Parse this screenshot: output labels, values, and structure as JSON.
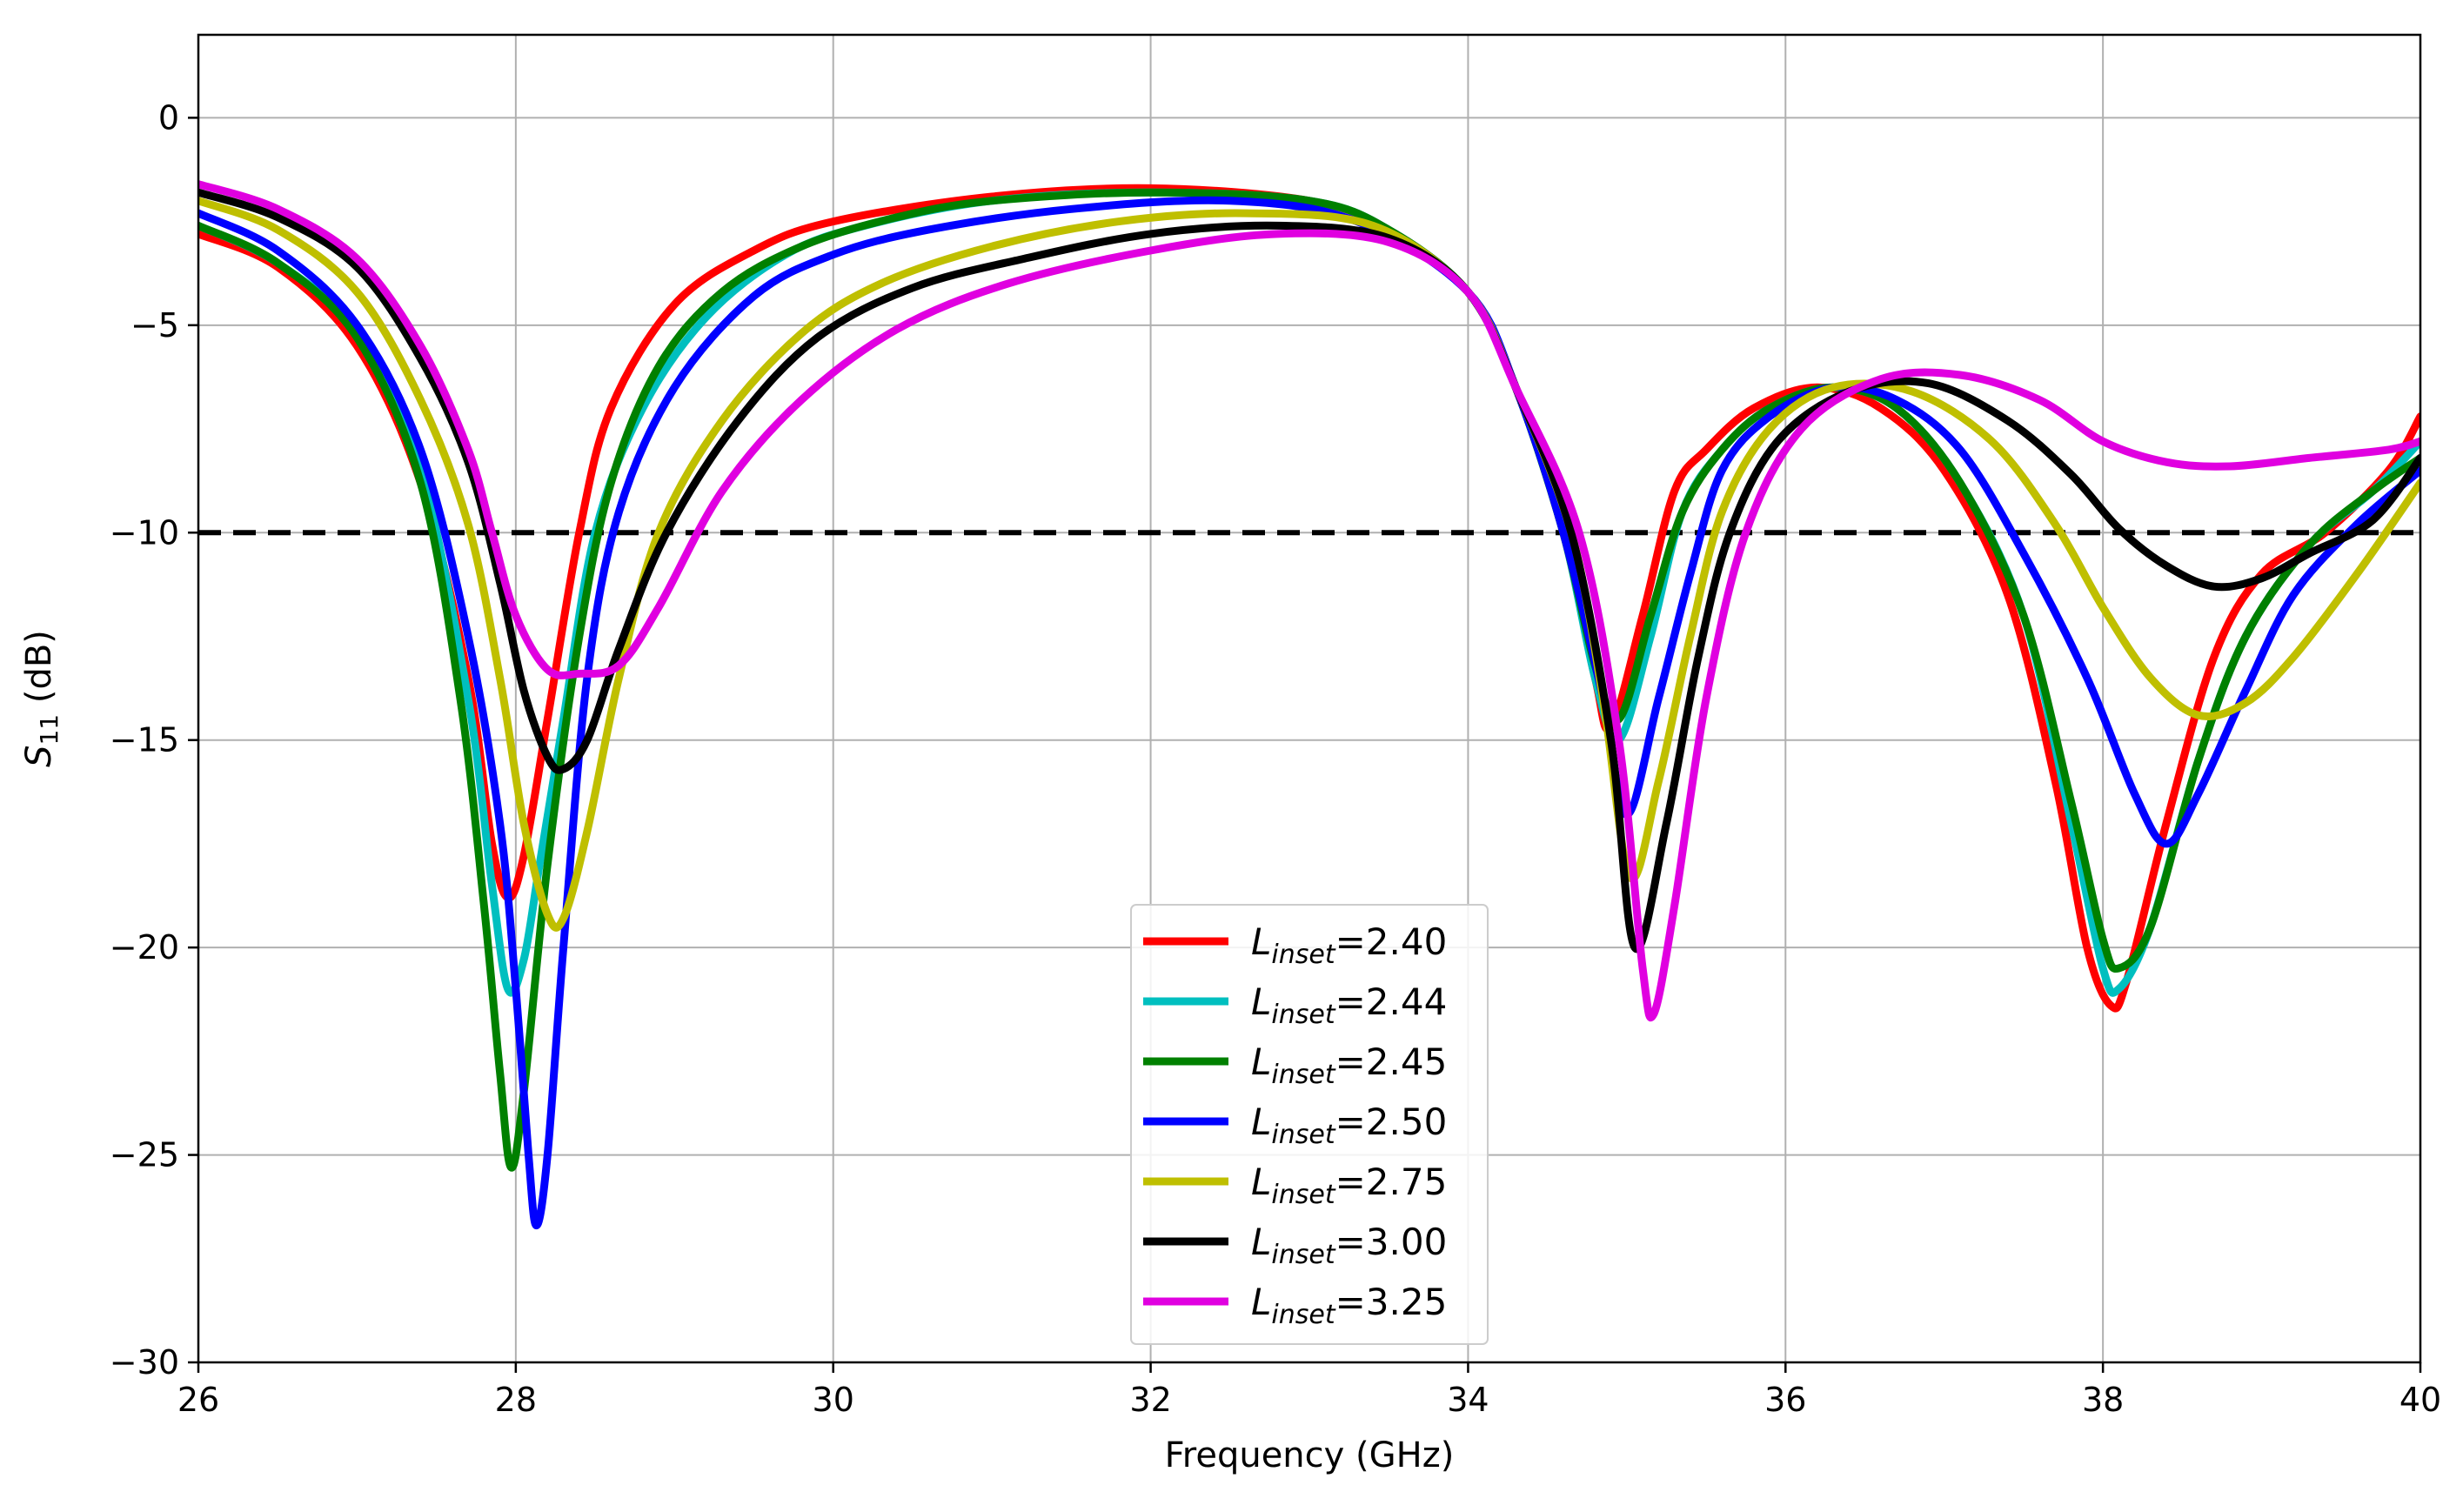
{
  "chart_data": {
    "type": "line",
    "title": "",
    "xlabel": "Frequency (GHz)",
    "ylabel": {
      "base": "S",
      "sub": "11",
      "rest": " (dB)"
    },
    "xlim": [
      26,
      40
    ],
    "ylim": [
      -30,
      2
    ],
    "x_ticks": [
      26,
      28,
      30,
      32,
      34,
      36,
      38,
      40
    ],
    "x_tick_labels": [
      "26",
      "28",
      "30",
      "32",
      "34",
      "36",
      "38",
      "40"
    ],
    "y_ticks": [
      0,
      -5,
      -10,
      -15,
      -20,
      -25,
      -30
    ],
    "y_tick_labels": [
      "0",
      "−5",
      "−10",
      "−15",
      "−20",
      "−25",
      "−30"
    ],
    "grid": true,
    "legend_position": "lower-center",
    "threshold": {
      "y": -10,
      "style": "dashed",
      "color": "#000000"
    },
    "series": [
      {
        "name": "L_inset=2.40",
        "label_base": "L",
        "label_sub": "inset",
        "label_value": "=2.40",
        "color": "#ff0000",
        "points": [
          [
            26,
            -2.8
          ],
          [
            26.5,
            -3.6
          ],
          [
            27,
            -5.5
          ],
          [
            27.4,
            -8.8
          ],
          [
            27.7,
            -13.5
          ],
          [
            27.85,
            -17.5
          ],
          [
            27.95,
            -18.8
          ],
          [
            28.05,
            -17.8
          ],
          [
            28.2,
            -14.5
          ],
          [
            28.4,
            -10
          ],
          [
            28.6,
            -7
          ],
          [
            29,
            -4.5
          ],
          [
            29.5,
            -3.2
          ],
          [
            30,
            -2.5
          ],
          [
            31,
            -1.9
          ],
          [
            32,
            -1.7
          ],
          [
            33,
            -2
          ],
          [
            33.5,
            -2.7
          ],
          [
            34,
            -4.2
          ],
          [
            34.3,
            -6.5
          ],
          [
            34.6,
            -10
          ],
          [
            34.8,
            -13.5
          ],
          [
            34.9,
            -14.7
          ],
          [
            35.1,
            -12
          ],
          [
            35.3,
            -9
          ],
          [
            35.5,
            -8
          ],
          [
            35.8,
            -7
          ],
          [
            36.2,
            -6.5
          ],
          [
            36.6,
            -7
          ],
          [
            37,
            -8.5
          ],
          [
            37.4,
            -11.5
          ],
          [
            37.7,
            -16
          ],
          [
            37.9,
            -20
          ],
          [
            38.05,
            -21.4
          ],
          [
            38.15,
            -20.8
          ],
          [
            38.4,
            -17
          ],
          [
            38.7,
            -13
          ],
          [
            39,
            -11
          ],
          [
            39.4,
            -10
          ],
          [
            39.8,
            -8.5
          ],
          [
            40,
            -7.2
          ]
        ]
      },
      {
        "name": "L_inset=2.44",
        "label_base": "L",
        "label_sub": "inset",
        "label_value": "=2.44",
        "color": "#00bfbf",
        "points": [
          [
            26,
            -2.6
          ],
          [
            26.5,
            -3.5
          ],
          [
            27,
            -5.2
          ],
          [
            27.4,
            -8.5
          ],
          [
            27.7,
            -14
          ],
          [
            27.85,
            -18.5
          ],
          [
            27.95,
            -21
          ],
          [
            28.05,
            -20.3
          ],
          [
            28.15,
            -18
          ],
          [
            28.3,
            -14.5
          ],
          [
            28.5,
            -10
          ],
          [
            28.8,
            -7
          ],
          [
            29.2,
            -4.8
          ],
          [
            29.7,
            -3.3
          ],
          [
            30.2,
            -2.6
          ],
          [
            31,
            -2
          ],
          [
            32,
            -1.8
          ],
          [
            33,
            -2
          ],
          [
            33.5,
            -2.7
          ],
          [
            34,
            -4.2
          ],
          [
            34.3,
            -6.5
          ],
          [
            34.6,
            -10
          ],
          [
            34.8,
            -13.5
          ],
          [
            34.95,
            -15
          ],
          [
            35.15,
            -12.5
          ],
          [
            35.35,
            -9.5
          ],
          [
            35.6,
            -8
          ],
          [
            35.9,
            -7
          ],
          [
            36.3,
            -6.5
          ],
          [
            36.7,
            -7
          ],
          [
            37.1,
            -8.8
          ],
          [
            37.5,
            -12
          ],
          [
            37.8,
            -17
          ],
          [
            38,
            -20.5
          ],
          [
            38.1,
            -21
          ],
          [
            38.3,
            -19.5
          ],
          [
            38.6,
            -15.5
          ],
          [
            38.9,
            -12.5
          ],
          [
            39.3,
            -10.3
          ],
          [
            39.7,
            -9
          ],
          [
            40,
            -7.8
          ]
        ]
      },
      {
        "name": "L_inset=2.45",
        "label_base": "L",
        "label_sub": "inset",
        "label_value": "=2.45",
        "color": "#008000",
        "points": [
          [
            26,
            -2.6
          ],
          [
            26.5,
            -3.5
          ],
          [
            27,
            -5.3
          ],
          [
            27.4,
            -8.8
          ],
          [
            27.65,
            -14
          ],
          [
            27.8,
            -19
          ],
          [
            27.9,
            -23
          ],
          [
            27.97,
            -25.3
          ],
          [
            28.05,
            -23.5
          ],
          [
            28.2,
            -18
          ],
          [
            28.4,
            -12.5
          ],
          [
            28.6,
            -8.8
          ],
          [
            28.9,
            -6
          ],
          [
            29.3,
            -4.2
          ],
          [
            29.8,
            -3.1
          ],
          [
            30.4,
            -2.4
          ],
          [
            31,
            -2
          ],
          [
            32,
            -1.8
          ],
          [
            33,
            -2
          ],
          [
            33.5,
            -2.7
          ],
          [
            34,
            -4.2
          ],
          [
            34.3,
            -6.5
          ],
          [
            34.6,
            -10
          ],
          [
            34.8,
            -13.2
          ],
          [
            34.95,
            -14.5
          ],
          [
            35.15,
            -12
          ],
          [
            35.35,
            -9.5
          ],
          [
            35.6,
            -8
          ],
          [
            35.9,
            -7
          ],
          [
            36.3,
            -6.5
          ],
          [
            36.7,
            -7
          ],
          [
            37.1,
            -8.8
          ],
          [
            37.5,
            -12
          ],
          [
            37.8,
            -16.5
          ],
          [
            38,
            -19.8
          ],
          [
            38.1,
            -20.5
          ],
          [
            38.3,
            -19.5
          ],
          [
            38.6,
            -15.5
          ],
          [
            38.9,
            -12.5
          ],
          [
            39.3,
            -10.3
          ],
          [
            39.7,
            -9
          ],
          [
            40,
            -8.2
          ]
        ]
      },
      {
        "name": "L_inset=2.50",
        "label_base": "L",
        "label_sub": "inset",
        "label_value": "=2.50",
        "color": "#0000ff",
        "points": [
          [
            26,
            -2.3
          ],
          [
            26.5,
            -3.2
          ],
          [
            27,
            -5
          ],
          [
            27.4,
            -8
          ],
          [
            27.7,
            -12.5
          ],
          [
            27.9,
            -17
          ],
          [
            28,
            -21
          ],
          [
            28.08,
            -25
          ],
          [
            28.13,
            -26.7
          ],
          [
            28.2,
            -25
          ],
          [
            28.3,
            -20
          ],
          [
            28.45,
            -13.5
          ],
          [
            28.65,
            -9.5
          ],
          [
            29,
            -6.5
          ],
          [
            29.5,
            -4.3
          ],
          [
            30,
            -3.3
          ],
          [
            30.6,
            -2.7
          ],
          [
            31.5,
            -2.2
          ],
          [
            32.5,
            -2
          ],
          [
            33.3,
            -2.5
          ],
          [
            34,
            -4.2
          ],
          [
            34.3,
            -6.5
          ],
          [
            34.6,
            -10
          ],
          [
            34.85,
            -14
          ],
          [
            35,
            -16.8
          ],
          [
            35.2,
            -14
          ],
          [
            35.4,
            -11
          ],
          [
            35.6,
            -8.5
          ],
          [
            35.9,
            -7.2
          ],
          [
            36.3,
            -6.5
          ],
          [
            36.7,
            -6.8
          ],
          [
            37.1,
            -8
          ],
          [
            37.5,
            -10.5
          ],
          [
            37.9,
            -13.5
          ],
          [
            38.2,
            -16.3
          ],
          [
            38.4,
            -17.5
          ],
          [
            38.6,
            -16.3
          ],
          [
            38.9,
            -13.8
          ],
          [
            39.2,
            -11.5
          ],
          [
            39.6,
            -9.8
          ],
          [
            40,
            -8.5
          ]
        ]
      },
      {
        "name": "L_inset=2.75",
        "label_base": "L",
        "label_sub": "inset",
        "label_value": "=2.75",
        "color": "#bfbf00",
        "points": [
          [
            26,
            -2
          ],
          [
            26.5,
            -2.7
          ],
          [
            27,
            -4.2
          ],
          [
            27.4,
            -6.8
          ],
          [
            27.7,
            -9.8
          ],
          [
            27.9,
            -13.5
          ],
          [
            28.05,
            -17
          ],
          [
            28.2,
            -19.2
          ],
          [
            28.3,
            -19.3
          ],
          [
            28.45,
            -17.2
          ],
          [
            28.65,
            -13.5
          ],
          [
            28.9,
            -10
          ],
          [
            29.3,
            -7.3
          ],
          [
            29.8,
            -5.2
          ],
          [
            30.3,
            -4
          ],
          [
            31,
            -3.1
          ],
          [
            31.8,
            -2.5
          ],
          [
            32.6,
            -2.3
          ],
          [
            33.4,
            -2.6
          ],
          [
            34,
            -4.2
          ],
          [
            34.3,
            -6.5
          ],
          [
            34.65,
            -10
          ],
          [
            34.85,
            -14
          ],
          [
            35.02,
            -18.3
          ],
          [
            35.2,
            -16
          ],
          [
            35.4,
            -12.5
          ],
          [
            35.6,
            -9.5
          ],
          [
            35.9,
            -7.5
          ],
          [
            36.3,
            -6.5
          ],
          [
            36.8,
            -6.6
          ],
          [
            37.3,
            -7.8
          ],
          [
            37.7,
            -9.8
          ],
          [
            38,
            -11.8
          ],
          [
            38.3,
            -13.5
          ],
          [
            38.6,
            -14.4
          ],
          [
            38.9,
            -14.1
          ],
          [
            39.2,
            -13
          ],
          [
            39.6,
            -11
          ],
          [
            40,
            -8.8
          ]
        ]
      },
      {
        "name": "L_inset=3.00",
        "label_base": "L",
        "label_sub": "inset",
        "label_value": "=3.00",
        "color": "#000000",
        "points": [
          [
            26,
            -1.8
          ],
          [
            26.5,
            -2.4
          ],
          [
            27,
            -3.6
          ],
          [
            27.4,
            -5.8
          ],
          [
            27.7,
            -8.3
          ],
          [
            27.9,
            -11.2
          ],
          [
            28.05,
            -13.8
          ],
          [
            28.2,
            -15.4
          ],
          [
            28.3,
            -15.7
          ],
          [
            28.45,
            -15
          ],
          [
            28.65,
            -12.8
          ],
          [
            28.95,
            -10
          ],
          [
            29.4,
            -7.3
          ],
          [
            29.9,
            -5.3
          ],
          [
            30.5,
            -4.1
          ],
          [
            31.2,
            -3.4
          ],
          [
            32,
            -2.8
          ],
          [
            32.8,
            -2.6
          ],
          [
            33.5,
            -2.9
          ],
          [
            34,
            -4.2
          ],
          [
            34.3,
            -6.5
          ],
          [
            34.65,
            -10
          ],
          [
            34.9,
            -15
          ],
          [
            35.05,
            -20
          ],
          [
            35.25,
            -17
          ],
          [
            35.45,
            -13
          ],
          [
            35.65,
            -10
          ],
          [
            35.95,
            -7.8
          ],
          [
            36.4,
            -6.6
          ],
          [
            36.9,
            -6.4
          ],
          [
            37.4,
            -7.3
          ],
          [
            37.8,
            -8.6
          ],
          [
            38.1,
            -9.9
          ],
          [
            38.4,
            -10.8
          ],
          [
            38.7,
            -11.3
          ],
          [
            39,
            -11.1
          ],
          [
            39.3,
            -10.5
          ],
          [
            39.7,
            -9.7
          ],
          [
            40,
            -8.2
          ]
        ]
      },
      {
        "name": "L_inset=3.25",
        "label_base": "L",
        "label_sub": "inset",
        "label_value": "=3.25",
        "color": "#e000e0",
        "points": [
          [
            26,
            -1.6
          ],
          [
            26.5,
            -2.2
          ],
          [
            27,
            -3.4
          ],
          [
            27.4,
            -5.5
          ],
          [
            27.7,
            -8
          ],
          [
            27.85,
            -10
          ],
          [
            28,
            -12
          ],
          [
            28.2,
            -13.3
          ],
          [
            28.4,
            -13.4
          ],
          [
            28.65,
            -13.2
          ],
          [
            28.9,
            -11.8
          ],
          [
            29.3,
            -9
          ],
          [
            29.8,
            -6.8
          ],
          [
            30.4,
            -5.1
          ],
          [
            31.1,
            -4
          ],
          [
            32,
            -3.2
          ],
          [
            32.8,
            -2.8
          ],
          [
            33.5,
            -3
          ],
          [
            34,
            -4.2
          ],
          [
            34.3,
            -6.5
          ],
          [
            34.7,
            -10
          ],
          [
            34.95,
            -15
          ],
          [
            35.1,
            -20.5
          ],
          [
            35.17,
            -21.6
          ],
          [
            35.3,
            -19
          ],
          [
            35.5,
            -14
          ],
          [
            35.75,
            -10
          ],
          [
            36.1,
            -7.5
          ],
          [
            36.6,
            -6.3
          ],
          [
            37.1,
            -6.2
          ],
          [
            37.6,
            -6.8
          ],
          [
            38,
            -7.8
          ],
          [
            38.4,
            -8.3
          ],
          [
            38.8,
            -8.4
          ],
          [
            39.3,
            -8.2
          ],
          [
            39.8,
            -8
          ],
          [
            40,
            -7.8
          ]
        ]
      }
    ]
  }
}
